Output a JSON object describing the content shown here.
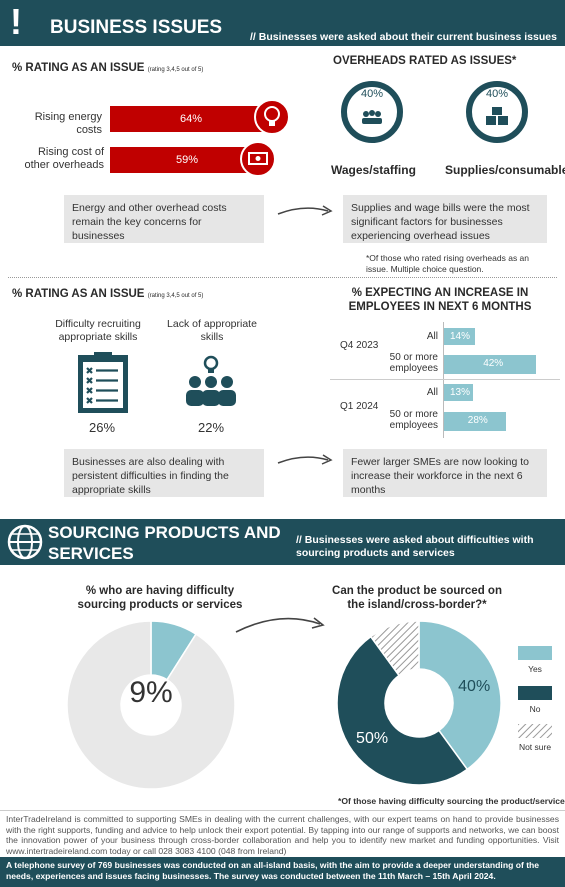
{
  "header": {
    "icon_char": "!",
    "title": "BUSINESS ISSUES",
    "subtitle": "// Businesses were asked about their current business issues"
  },
  "rating_section_1": {
    "title": "% RATING AS AN ISSUE",
    "title_note": "(rating 3,4,5 out of 5)",
    "items": [
      {
        "label": "Rising energy costs",
        "value": "64%",
        "icon": "lightbulb-icon"
      },
      {
        "label": "Rising cost of other overheads",
        "value": "59%",
        "icon": "cash-icon"
      }
    ],
    "statement": "Energy and other overhead costs remain the key concerns for businesses"
  },
  "overheads": {
    "title": "OVERHEADS RATED AS ISSUES*",
    "items": [
      {
        "label": "Wages/staffing",
        "value": "40%",
        "icon": "people-icon"
      },
      {
        "label": "Supplies/consumables",
        "value": "40%",
        "icon": "boxes-icon"
      }
    ],
    "statement": "Supplies and wage bills were the most significant factors for businesses experiencing overhead issues",
    "footnote": "*Of those who rated rising overheads as an issue. Multiple choice question."
  },
  "rating_section_2": {
    "title": "% RATING AS AN ISSUE",
    "title_note": "(rating 3,4,5 out of 5)",
    "items": [
      {
        "label": "Difficulty recruiting appropriate skills",
        "value": "26%",
        "icon": "clipboard-icon"
      },
      {
        "label": "Lack of appropriate skills",
        "value": "22%",
        "icon": "team-idea-icon"
      }
    ],
    "statement": "Businesses are also dealing with persistent difficulties in finding the appropriate skills"
  },
  "employees": {
    "title": "% EXPECTING AN INCREASE IN EMPLOYEES IN NEXT 6 MONTHS",
    "statement": "Fewer larger SMEs are now looking to increase their workforce in the next 6 months"
  },
  "sourcing_header": {
    "title": "SOURCING PRODUCTS AND SERVICES",
    "subtitle": "// Businesses were asked about difficulties with sourcing products and services"
  },
  "sourcing": {
    "left_title": "% who are having difficulty sourcing products or services",
    "left_value": "9%",
    "right_title": "Can the product be sourced on the island/cross-border?*",
    "legend": [
      {
        "label": "Yes",
        "color": "#8cc5cf"
      },
      {
        "label": "No",
        "color": "#1f4e5a"
      },
      {
        "label": "Not sure",
        "color": "hatch"
      }
    ],
    "footnote": "*Of those having difficulty sourcing the product/service"
  },
  "footer": {
    "text": "InterTradeIreland is committed to supporting SMEs in dealing with the current challenges, with our expert teams on hand to provide businesses with the right supports, funding and advice to help unlock their export potential. By tapping into our range of supports and networks, we can boost the innovation power of your business through cross-border collaboration and help you to identify new market and funding opportunities. Visit www.intertradeireland.com today or call 028 3083 4100 (048 from Ireland)",
    "survey_text": "A telephone survey of 769 businesses was conducted on an all-island basis, with the aim to provide a deeper understanding of the needs, experiences and issues facing businesses. The survey was conducted between the 11th March – 15th April 2024."
  },
  "chart_data": [
    {
      "type": "bar",
      "title": "% RATING AS AN ISSUE",
      "categories": [
        "Rising energy costs",
        "Rising cost of other overheads"
      ],
      "values": [
        64,
        59
      ],
      "unit": "%"
    },
    {
      "type": "bar",
      "title": "OVERHEADS RATED AS ISSUES*",
      "categories": [
        "Wages/staffing",
        "Supplies/consumables"
      ],
      "values": [
        40,
        40
      ],
      "unit": "%"
    },
    {
      "type": "bar",
      "title": "% RATING AS AN ISSUE",
      "categories": [
        "Difficulty recruiting appropriate skills",
        "Lack of appropriate skills"
      ],
      "values": [
        26,
        22
      ],
      "unit": "%"
    },
    {
      "type": "bar",
      "title": "% EXPECTING AN INCREASE IN EMPLOYEES IN NEXT 6 MONTHS",
      "groups": [
        {
          "name": "Q4 2023",
          "categories": [
            "All",
            "50 or more employees"
          ],
          "values": [
            14,
            42
          ]
        },
        {
          "name": "Q1 2024",
          "categories": [
            "All",
            "50 or more employees"
          ],
          "values": [
            13,
            28
          ]
        }
      ],
      "bar_color": "#8cc5cf",
      "unit": "%"
    },
    {
      "type": "pie",
      "title": "% who are having difficulty sourcing products or services",
      "values": [
        9,
        91
      ],
      "labels": [
        "9%",
        ""
      ],
      "colors": [
        "#8cc5cf",
        "#e8e8e8"
      ]
    },
    {
      "type": "pie",
      "title": "Can the product be sourced on the island/cross-border?*",
      "categories": [
        "Yes",
        "No",
        "Not sure"
      ],
      "values": [
        40,
        50,
        10
      ],
      "labels": [
        "40%",
        "50%",
        ""
      ],
      "colors": [
        "#8cc5cf",
        "#1f4e5a",
        "hatch"
      ]
    }
  ]
}
